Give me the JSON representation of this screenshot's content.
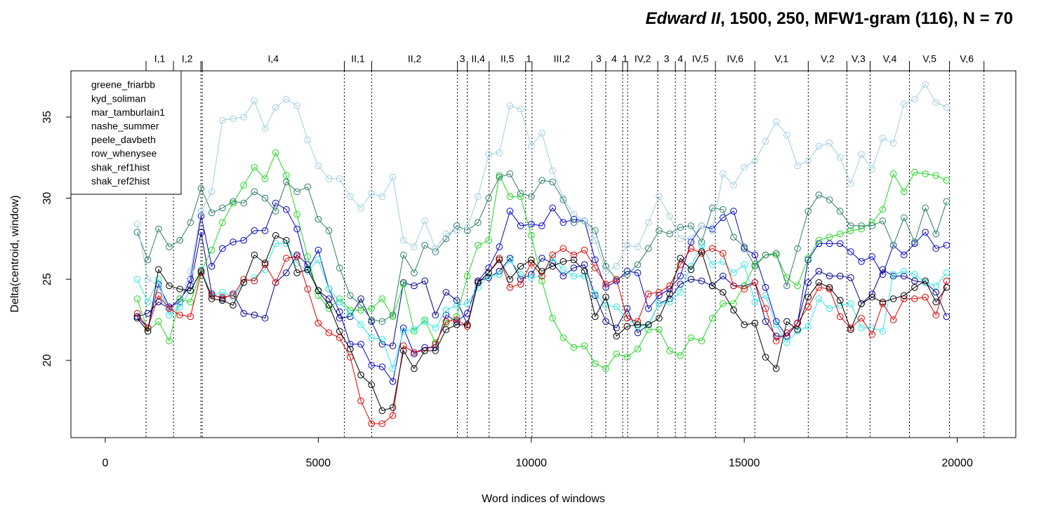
{
  "chart_data": {
    "type": "line",
    "title": [
      "Edward II",
      ", 1500, 250, MFW1-gram (116), N = 70"
    ],
    "x_label": "Word indices of windows",
    "y_label": "Delta(centroid, window)",
    "xlim": [
      -807,
      21374
    ],
    "ylim": [
      15.24,
      37.85
    ],
    "xticks": [
      0,
      5000,
      10000,
      15000,
      20000
    ],
    "yticks": [
      20,
      25,
      30,
      35
    ],
    "legend": "top-left",
    "scene_boundaries": [
      957,
      1601,
      2244,
      2277,
      5611,
      6254,
      8267,
      8498,
      9010,
      9868,
      10017,
      11419,
      11749,
      12145,
      12261,
      12970,
      13383,
      13614,
      14323,
      15248,
      16502,
      17409,
      17954,
      18878,
      19818,
      20627
    ],
    "scene_labels": [
      "I,1",
      "I,2",
      null,
      "I,4",
      "II,1",
      "II,2",
      "3",
      "II,4",
      "II,5",
      "1",
      "III,2",
      "3",
      "4",
      "1",
      "IV,2",
      "3",
      "4",
      "IV,5",
      "IV,6",
      "V,1",
      "V,2",
      "V,3",
      "V,4",
      "V,5",
      "V,6"
    ],
    "x": [
      750,
      1000,
      1250,
      1500,
      1750,
      2000,
      2250,
      2500,
      2750,
      3000,
      3250,
      3500,
      3750,
      4000,
      4250,
      4500,
      4750,
      5000,
      5250,
      5500,
      5750,
      6000,
      6250,
      6500,
      6750,
      7000,
      7250,
      7500,
      7750,
      8000,
      8250,
      8500,
      8750,
      9000,
      9250,
      9500,
      9750,
      10000,
      10250,
      10500,
      10750,
      11000,
      11250,
      11500,
      11750,
      12000,
      12250,
      12500,
      12750,
      13000,
      13250,
      13500,
      13750,
      14000,
      14250,
      14500,
      14750,
      15000,
      15250,
      15500,
      15750,
      16000,
      16250,
      16500,
      16750,
      17000,
      17250,
      17500,
      17750,
      18000,
      18250,
      18500,
      18750,
      19000,
      19250,
      19500,
      19750
    ],
    "series": [
      {
        "name": "greene_friarbb",
        "color": "#0000cd",
        "values": [
          22.7,
          22.0,
          24.7,
          23.3,
          23.6,
          25.0,
          28.9,
          25.8,
          26.9,
          27.3,
          27.4,
          28.0,
          28.0,
          29.7,
          29.3,
          28.1,
          25.6,
          26.8,
          24.4,
          23.0,
          21.0,
          21.0,
          19.7,
          19.6,
          18.7,
          22.0,
          20.4,
          20.8,
          20.8,
          22.8,
          22.4,
          22.9,
          24.9,
          25.7,
          27.0,
          29.2,
          28.3,
          28.4,
          28.3,
          29.4,
          28.5,
          28.7,
          28.6,
          26.2,
          24.5,
          24.9,
          25.5,
          25.4,
          23.2,
          24.0,
          24.4,
          25.2,
          27.3,
          28.3,
          28.1,
          28.8,
          29.2,
          26.9,
          26.5,
          24.5,
          22.4,
          21.5,
          22.3,
          26.2,
          27.2,
          27.2,
          27.2,
          26.7,
          26.1,
          26.4,
          25.3,
          27.1,
          26.5,
          27.2,
          27.9,
          26.9,
          27.1
        ]
      },
      {
        "name": "kyd_soliman",
        "color": "#00008b",
        "values": [
          22.7,
          22.9,
          23.6,
          23.2,
          23.8,
          24.6,
          27.9,
          24.1,
          23.8,
          24.1,
          22.9,
          22.8,
          22.6,
          24.8,
          25.4,
          26.5,
          25.9,
          24.3,
          23.8,
          22.6,
          22.7,
          23.8,
          22.4,
          21.0,
          20.9,
          24.8,
          24.6,
          24.9,
          22.8,
          24.2,
          23.7,
          22.2,
          24.9,
          25.1,
          25.5,
          26.3,
          25.0,
          25.3,
          26.3,
          26.0,
          25.2,
          25.7,
          25.9,
          24.0,
          22.4,
          22.0,
          23.2,
          21.7,
          22.2,
          23.5,
          23.8,
          24.7,
          25.0,
          24.9,
          24.6,
          25.2,
          24.6,
          24.6,
          24.8,
          22.4,
          21.5,
          21.5,
          22.3,
          24.8,
          25.5,
          25.2,
          25.2,
          25.1,
          23.5,
          24.1,
          25.6,
          25.2,
          25.2,
          24.9,
          24.8,
          24.2,
          22.7
        ]
      },
      {
        "name": "mar_tamburlain1",
        "color": "#1fd61f",
        "values": [
          23.8,
          21.8,
          22.4,
          21.2,
          23.8,
          23.6,
          25.5,
          26.8,
          28.5,
          29.7,
          30.8,
          31.9,
          31.2,
          32.8,
          31.4,
          29.0,
          26.4,
          24.0,
          23.2,
          23.8,
          23.1,
          23.1,
          23.2,
          23.8,
          22.7,
          24.7,
          21.8,
          22.5,
          21.1,
          22.3,
          22.7,
          25.2,
          27.1,
          27.4,
          31.4,
          30.1,
          30.1,
          27.7,
          24.9,
          22.6,
          21.4,
          20.8,
          20.9,
          19.8,
          19.5,
          20.4,
          20.2,
          20.7,
          21.9,
          21.9,
          20.6,
          20.3,
          21.4,
          21.2,
          22.6,
          23.5,
          23.5,
          24.6,
          25.9,
          26.5,
          26.5,
          25.1,
          24.6,
          26.3,
          27.4,
          27.6,
          27.8,
          28.0,
          28.1,
          28.5,
          29.3,
          31.5,
          30.4,
          31.6,
          31.5,
          31.4,
          31.1
        ]
      },
      {
        "name": "nashe_summer",
        "color": "#2e7d6b",
        "values": [
          27.9,
          26.2,
          28.1,
          27.0,
          27.4,
          28.5,
          30.6,
          29.1,
          29.4,
          29.8,
          29.7,
          30.4,
          30.0,
          29.2,
          31.0,
          30.4,
          30.7,
          28.7,
          28.0,
          25.7,
          24.0,
          23.4,
          22.5,
          22.4,
          22.8,
          26.5,
          25.4,
          27.1,
          26.7,
          27.5,
          28.3,
          28.0,
          28.5,
          30.0,
          31.3,
          31.5,
          30.3,
          30.1,
          31.1,
          31.0,
          29.9,
          28.5,
          28.6,
          28.0,
          25.8,
          25.0,
          25.3,
          25.9,
          26.9,
          28.0,
          27.8,
          28.2,
          28.3,
          27.3,
          29.4,
          29.3,
          27.6,
          27.0,
          25.8,
          26.5,
          26.6,
          24.6,
          26.9,
          29.2,
          30.2,
          29.9,
          29.2,
          28.3,
          28.3,
          28.3,
          28.6,
          27.1,
          28.8,
          27.3,
          29.4,
          27.8,
          29.8
        ]
      },
      {
        "name": "peele_davbeth",
        "color": "#9fcfe0",
        "values": [
          28.4,
          25.0,
          24.6,
          22.8,
          23.5,
          25.5,
          29.2,
          30.4,
          34.8,
          34.9,
          35.0,
          36.0,
          34.3,
          35.6,
          36.1,
          35.7,
          33.6,
          32.0,
          31.2,
          31.2,
          30.1,
          29.4,
          30.3,
          30.1,
          31.3,
          27.4,
          27.0,
          28.6,
          26.9,
          27.8,
          28.0,
          28.2,
          30.1,
          32.7,
          32.8,
          35.7,
          35.5,
          33.2,
          34.0,
          31.7,
          30.0,
          29.0,
          28.6,
          27.4,
          25.5,
          25.8,
          27.1,
          27.0,
          28.5,
          30.1,
          28.9,
          27.5,
          27.5,
          28.3,
          28.0,
          31.5,
          30.8,
          31.9,
          32.3,
          33.5,
          34.7,
          33.9,
          32.0,
          32.3,
          33.2,
          33.4,
          32.5,
          30.9,
          32.7,
          31.8,
          33.7,
          33.4,
          35.8,
          36.1,
          37.0,
          35.9,
          35.6
        ]
      },
      {
        "name": "row_whenysee",
        "color": "#2ee6e6",
        "values": [
          25.0,
          23.6,
          25.0,
          22.8,
          23.3,
          24.3,
          25.6,
          24.0,
          24.2,
          23.9,
          24.8,
          25.1,
          25.6,
          27.2,
          27.2,
          26.0,
          25.5,
          26.2,
          24.4,
          23.6,
          22.9,
          22.2,
          21.4,
          21.3,
          19.5,
          21.8,
          21.9,
          22.4,
          22.0,
          23.1,
          23.4,
          23.5,
          24.5,
          25.2,
          25.3,
          26.2,
          25.3,
          25.1,
          25.2,
          26.3,
          25.6,
          25.2,
          25.2,
          24.1,
          23.4,
          23.3,
          22.6,
          22.1,
          22.2,
          23.5,
          23.6,
          24.2,
          25.8,
          27.1,
          25.9,
          26.1,
          25.4,
          25.9,
          23.6,
          24.0,
          22.2,
          21.1,
          21.8,
          22.1,
          23.8,
          23.2,
          23.4,
          23.5,
          22.0,
          22.0,
          21.8,
          25.3,
          25.5,
          25.3,
          24.8,
          24.6,
          25.4
        ]
      },
      {
        "name": "shak_ref1hist",
        "color": "#e00000",
        "values": [
          22.9,
          22.0,
          24.0,
          23.2,
          22.8,
          22.7,
          25.4,
          24.0,
          23.9,
          24.0,
          25.0,
          24.9,
          25.9,
          24.8,
          26.3,
          26.4,
          24.4,
          22.3,
          21.7,
          21.4,
          20.2,
          17.5,
          16.1,
          16.1,
          16.6,
          20.9,
          20.5,
          20.6,
          21.0,
          22.4,
          22.5,
          22.1,
          24.8,
          25.4,
          26.3,
          24.5,
          24.7,
          26.0,
          25.2,
          26.5,
          26.9,
          26.5,
          26.8,
          25.7,
          24.7,
          25.0,
          22.6,
          22.4,
          24.1,
          24.2,
          24.6,
          25.9,
          26.9,
          26.6,
          26.9,
          26.6,
          24.6,
          24.4,
          24.8,
          23.2,
          21.2,
          21.7,
          22.3,
          23.3,
          24.5,
          24.4,
          22.7,
          22.0,
          22.6,
          21.6,
          23.5,
          22.5,
          23.8,
          23.8,
          23.9,
          22.8,
          24.9
        ]
      },
      {
        "name": "shak_ref2hist",
        "color": "#000000",
        "values": [
          22.6,
          21.8,
          25.6,
          24.6,
          24.4,
          24.3,
          25.5,
          23.8,
          23.7,
          23.4,
          24.8,
          26.5,
          26.0,
          27.7,
          27.4,
          25.4,
          25.6,
          24.3,
          23.4,
          21.8,
          20.7,
          19.1,
          18.5,
          16.9,
          17.1,
          20.6,
          19.5,
          20.6,
          20.6,
          21.9,
          22.2,
          22.2,
          24.8,
          25.4,
          26.2,
          25.0,
          25.8,
          26.2,
          25.5,
          25.8,
          26.1,
          26.2,
          25.5,
          22.7,
          23.9,
          21.5,
          22.1,
          22.2,
          22.2,
          22.6,
          24.1,
          26.3,
          25.6,
          26.7,
          24.6,
          24.2,
          23.1,
          22.2,
          22.3,
          20.2,
          19.5,
          22.4,
          21.9,
          23.9,
          24.8,
          24.5,
          23.7,
          21.9,
          23.5,
          23.9,
          23.6,
          23.8,
          24.0,
          24.5,
          24.9,
          23.6,
          24.5
        ]
      }
    ]
  }
}
